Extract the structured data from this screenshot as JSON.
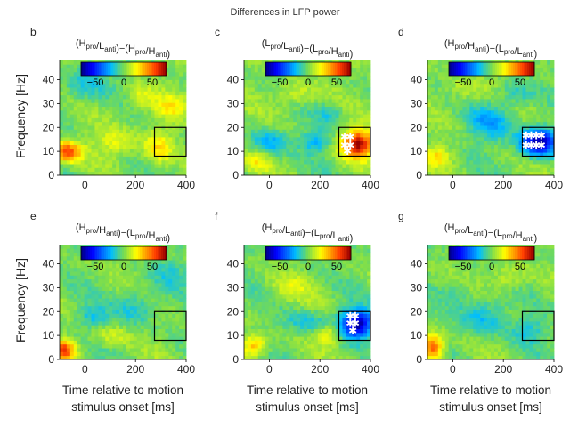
{
  "figure_title": "Differences in LFP power",
  "chart_data": [
    {
      "type": "heatmap",
      "panel": "b",
      "title": "(Hpro/Lanti)−(Hpro/Hanti)",
      "title_parts": [
        {
          "base": "H",
          "sub": "pro"
        },
        {
          "base": "L",
          "sub": "anti"
        },
        {
          "base": "H",
          "sub": "pro"
        },
        {
          "base": "H",
          "sub": "anti"
        }
      ],
      "xlim": [
        -100,
        400
      ],
      "ylim": [
        0,
        48
      ],
      "xticks": [
        0,
        200,
        400
      ],
      "yticks": [
        0,
        10,
        20,
        30,
        40
      ],
      "xlabel": "",
      "ylabel": "Frequency [Hz]",
      "colorbar": {
        "range": [
          -75,
          75
        ],
        "tick_labels": [
          "−50",
          "0",
          "50"
        ],
        "tick_values": [
          -50,
          0,
          50
        ]
      },
      "roi": {
        "x": [
          275,
          400
        ],
        "y": [
          8,
          20
        ]
      },
      "blobs": [
        {
          "x": -70,
          "y": 10,
          "sx": 40,
          "sy": 3,
          "value": 55
        },
        {
          "x": 290,
          "y": 12,
          "sx": 40,
          "sy": 5,
          "value": 28
        },
        {
          "x": 120,
          "y": 14,
          "sx": 60,
          "sy": 4,
          "value": 18
        },
        {
          "x": 0,
          "y": 38,
          "sx": 60,
          "sy": 5,
          "value": -18
        },
        {
          "x": 220,
          "y": 32,
          "sx": 40,
          "sy": 4,
          "value": 20
        },
        {
          "x": 330,
          "y": 28,
          "sx": 40,
          "sy": 4,
          "value": 22
        }
      ],
      "significance_markers": []
    },
    {
      "type": "heatmap",
      "panel": "c",
      "title": "(Lpro/Lanti)−(Lpro/Hanti)",
      "title_parts": [
        {
          "base": "L",
          "sub": "pro"
        },
        {
          "base": "L",
          "sub": "anti"
        },
        {
          "base": "L",
          "sub": "pro"
        },
        {
          "base": "H",
          "sub": "anti"
        }
      ],
      "xlim": [
        -100,
        400
      ],
      "ylim": [
        0,
        48
      ],
      "xticks": [
        0,
        200,
        400
      ],
      "yticks": [
        0,
        10,
        20,
        30,
        40
      ],
      "xlabel": "",
      "ylabel": "",
      "colorbar": {
        "range": [
          -75,
          75
        ],
        "tick_labels": [
          "−50",
          "0",
          "50"
        ],
        "tick_values": [
          -50,
          0,
          50
        ]
      },
      "roi": {
        "x": [
          275,
          400
        ],
        "y": [
          8,
          20
        ]
      },
      "blobs": [
        {
          "x": 350,
          "y": 13,
          "sx": 45,
          "sy": 4,
          "value": 72
        },
        {
          "x": 0,
          "y": 14,
          "sx": 50,
          "sy": 4,
          "value": -25
        },
        {
          "x": 180,
          "y": 14,
          "sx": 40,
          "sy": 3,
          "value": -22
        },
        {
          "x": -50,
          "y": 6,
          "sx": 40,
          "sy": 3,
          "value": 22
        },
        {
          "x": 100,
          "y": 34,
          "sx": 60,
          "sy": 4,
          "value": 15
        },
        {
          "x": 240,
          "y": 26,
          "sx": 40,
          "sy": 3,
          "value": -15
        }
      ],
      "significance_markers": [
        {
          "x": 298,
          "y": 16
        },
        {
          "x": 320,
          "y": 16
        },
        {
          "x": 298,
          "y": 12.5
        },
        {
          "x": 320,
          "y": 12.5
        },
        {
          "x": 309,
          "y": 10
        }
      ]
    },
    {
      "type": "heatmap",
      "panel": "d",
      "title": "(Hpro/Hanti)−(Lpro/Lanti)",
      "title_parts": [
        {
          "base": "H",
          "sub": "pro"
        },
        {
          "base": "H",
          "sub": "anti"
        },
        {
          "base": "L",
          "sub": "pro"
        },
        {
          "base": "L",
          "sub": "anti"
        }
      ],
      "xlim": [
        -100,
        400
      ],
      "ylim": [
        0,
        48
      ],
      "xticks": [
        0,
        200,
        400
      ],
      "yticks": [
        0,
        10,
        20,
        30,
        40
      ],
      "xlabel": "",
      "ylabel": "",
      "colorbar": {
        "range": [
          -75,
          75
        ],
        "tick_labels": [
          "−50",
          "0",
          "50"
        ],
        "tick_values": [
          -50,
          0,
          50
        ]
      },
      "roi": {
        "x": [
          275,
          400
        ],
        "y": [
          8,
          20
        ]
      },
      "blobs": [
        {
          "x": 340,
          "y": 14,
          "sx": 50,
          "sy": 4,
          "value": -72
        },
        {
          "x": 150,
          "y": 22,
          "sx": 60,
          "sy": 5,
          "value": -25
        },
        {
          "x": -60,
          "y": 8,
          "sx": 35,
          "sy": 3,
          "value": 25
        },
        {
          "x": 50,
          "y": 36,
          "sx": 60,
          "sy": 4,
          "value": 12
        },
        {
          "x": 250,
          "y": 34,
          "sx": 50,
          "sy": 4,
          "value": -15
        }
      ],
      "significance_markers": [
        {
          "x": 290,
          "y": 16.5
        },
        {
          "x": 310,
          "y": 16.5
        },
        {
          "x": 330,
          "y": 16.5
        },
        {
          "x": 350,
          "y": 16.5
        },
        {
          "x": 290,
          "y": 12.5
        },
        {
          "x": 310,
          "y": 12.5
        },
        {
          "x": 330,
          "y": 12.5
        },
        {
          "x": 350,
          "y": 12.5
        }
      ]
    },
    {
      "type": "heatmap",
      "panel": "e",
      "title": "(Hpro/Hanti)−(Lpro/Hanti)",
      "title_parts": [
        {
          "base": "H",
          "sub": "pro"
        },
        {
          "base": "H",
          "sub": "anti"
        },
        {
          "base": "L",
          "sub": "pro"
        },
        {
          "base": "H",
          "sub": "anti"
        }
      ],
      "xlim": [
        -100,
        400
      ],
      "ylim": [
        0,
        48
      ],
      "xticks": [
        0,
        200,
        400
      ],
      "yticks": [
        0,
        10,
        20,
        30,
        40
      ],
      "xlabel": "Time relative to motion stimulus onset [ms]",
      "ylabel": "Frequency [Hz]",
      "colorbar": {
        "range": [
          -75,
          75
        ],
        "tick_labels": [
          "−50",
          "0",
          "50"
        ],
        "tick_values": [
          -50,
          0,
          50
        ]
      },
      "roi": {
        "x": [
          275,
          400
        ],
        "y": [
          8,
          20
        ]
      },
      "blobs": [
        {
          "x": -80,
          "y": 4,
          "sx": 30,
          "sy": 3,
          "value": 55
        },
        {
          "x": 30,
          "y": 18,
          "sx": 40,
          "sy": 3,
          "value": -18
        },
        {
          "x": 200,
          "y": 22,
          "sx": 60,
          "sy": 5,
          "value": -18
        },
        {
          "x": 100,
          "y": 10,
          "sx": 50,
          "sy": 3,
          "value": 15
        },
        {
          "x": 330,
          "y": 36,
          "sx": 50,
          "sy": 4,
          "value": -12
        }
      ],
      "significance_markers": []
    },
    {
      "type": "heatmap",
      "panel": "f",
      "title": "(Hpro/Lanti)−(Lpro/Lanti)",
      "title_parts": [
        {
          "base": "H",
          "sub": "pro"
        },
        {
          "base": "L",
          "sub": "anti"
        },
        {
          "base": "L",
          "sub": "pro"
        },
        {
          "base": "L",
          "sub": "anti"
        }
      ],
      "xlim": [
        -100,
        400
      ],
      "ylim": [
        0,
        48
      ],
      "xticks": [
        0,
        200,
        400
      ],
      "yticks": [
        0,
        10,
        20,
        30,
        40
      ],
      "xlabel": "Time relative to motion stimulus onset [ms]",
      "ylabel": "",
      "colorbar": {
        "range": [
          -75,
          75
        ],
        "tick_labels": [
          "−50",
          "0",
          "50"
        ],
        "tick_values": [
          -50,
          0,
          50
        ]
      },
      "roi": {
        "x": [
          275,
          400
        ],
        "y": [
          8,
          20
        ]
      },
      "blobs": [
        {
          "x": 345,
          "y": 15,
          "sx": 45,
          "sy": 4,
          "value": -72
        },
        {
          "x": -60,
          "y": 6,
          "sx": 35,
          "sy": 3,
          "value": 35
        },
        {
          "x": 150,
          "y": 16,
          "sx": 60,
          "sy": 3,
          "value": -18
        },
        {
          "x": 230,
          "y": 10,
          "sx": 30,
          "sy": 3,
          "value": 22
        },
        {
          "x": 80,
          "y": 30,
          "sx": 60,
          "sy": 4,
          "value": 12
        }
      ],
      "significance_markers": [
        {
          "x": 320,
          "y": 18
        },
        {
          "x": 340,
          "y": 18
        },
        {
          "x": 320,
          "y": 15
        },
        {
          "x": 340,
          "y": 15
        },
        {
          "x": 330,
          "y": 12
        }
      ]
    },
    {
      "type": "heatmap",
      "panel": "g",
      "title": "(Hpro/Lanti)−(Lpro/Hanti)",
      "title_parts": [
        {
          "base": "H",
          "sub": "pro"
        },
        {
          "base": "L",
          "sub": "anti"
        },
        {
          "base": "L",
          "sub": "pro"
        },
        {
          "base": "H",
          "sub": "anti"
        }
      ],
      "xlim": [
        -100,
        400
      ],
      "ylim": [
        0,
        48
      ],
      "xticks": [
        0,
        200,
        400
      ],
      "yticks": [
        0,
        10,
        20,
        30,
        40
      ],
      "xlabel": "Time relative to motion stimulus onset [ms]",
      "ylabel": "",
      "colorbar": {
        "range": [
          -75,
          75
        ],
        "tick_labels": [
          "−50",
          "0",
          "50"
        ],
        "tick_values": [
          -50,
          0,
          50
        ]
      },
      "roi": {
        "x": [
          275,
          400
        ],
        "y": [
          8,
          20
        ]
      },
      "blobs": [
        {
          "x": -80,
          "y": 5,
          "sx": 30,
          "sy": 4,
          "value": 55
        },
        {
          "x": 120,
          "y": 18,
          "sx": 60,
          "sy": 5,
          "value": -22
        },
        {
          "x": 300,
          "y": 12,
          "sx": 50,
          "sy": 4,
          "value": -15
        },
        {
          "x": 220,
          "y": 34,
          "sx": 50,
          "sy": 4,
          "value": 15
        },
        {
          "x": 20,
          "y": 28,
          "sx": 40,
          "sy": 3,
          "value": -12
        }
      ],
      "significance_markers": []
    }
  ]
}
